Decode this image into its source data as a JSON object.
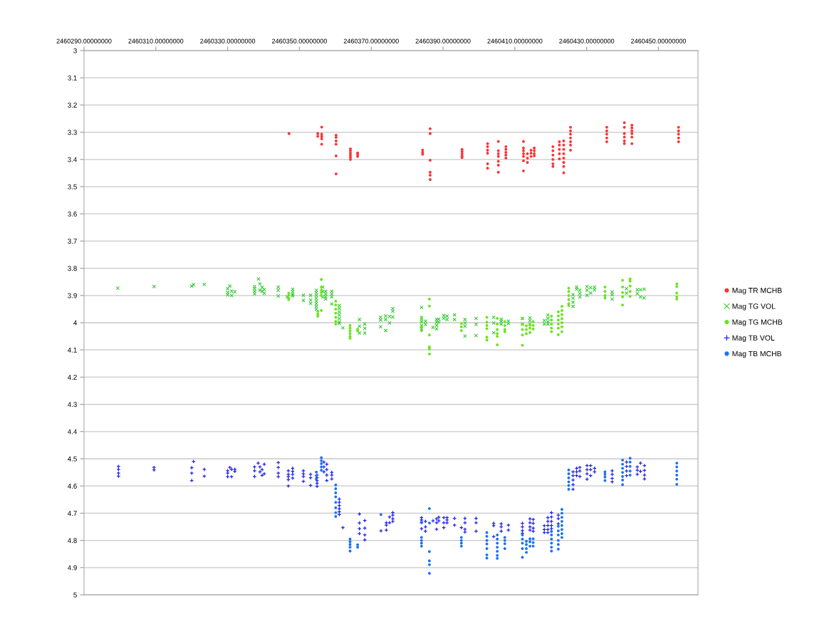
{
  "chart_data": {
    "type": "scatter",
    "xlim": [
      2460290,
      2460461
    ],
    "xticks": [
      {
        "value": 2460290,
        "label": "2460290.00000000"
      },
      {
        "value": 2460310,
        "label": "2460310.00000000"
      },
      {
        "value": 2460330,
        "label": "2460330.00000000"
      },
      {
        "value": 2460350,
        "label": "2460350.00000000"
      },
      {
        "value": 2460370,
        "label": "2460370.00000000"
      },
      {
        "value": 2460390,
        "label": "2460390.00000000"
      },
      {
        "value": 2460410,
        "label": "2460410.00000000"
      },
      {
        "value": 2460430,
        "label": "2460430.00000000"
      },
      {
        "value": 2460450,
        "label": "2460450.00000000"
      }
    ],
    "ylim": [
      5,
      3
    ],
    "yticks": [
      3,
      3.1,
      3.2,
      3.3,
      3.4,
      3.5,
      3.6,
      3.7,
      3.8,
      3.9,
      4,
      4.1,
      4.2,
      4.3,
      4.4,
      4.5,
      4.6,
      4.7,
      4.8,
      4.9,
      5
    ],
    "grid": "y",
    "legend": "right",
    "series": [
      {
        "name": "Mag TR MCHB",
        "color": "#ff3333",
        "marker": "circle",
        "x": [
          2460347.1,
          2460355.1,
          2460355.1,
          2460356.2,
          2460356.2,
          2460356.2,
          2460356.2,
          2460356.2,
          2460360.2,
          2460360.2,
          2460360.2,
          2460360.2,
          2460360.2,
          2460360.2,
          2460364.2,
          2460364.2,
          2460364.2,
          2460364.2,
          2460364.2,
          2460364.2,
          2460366.2,
          2460366.2,
          2460366.2,
          2460384.3,
          2460384.3,
          2460384.3,
          2460386.4,
          2460386.4,
          2460386.4,
          2460386.4,
          2460386.4,
          2460386.4,
          2460395.3,
          2460395.3,
          2460395.3,
          2460395.3,
          2460395.3,
          2460402.4,
          2460402.4,
          2460402.4,
          2460402.4,
          2460402.4,
          2460402.4,
          2460405.4,
          2460405.4,
          2460405.4,
          2460405.4,
          2460405.4,
          2460405.4,
          2460405.4,
          2460407.5,
          2460407.5,
          2460407.5,
          2460407.5,
          2460407.5,
          2460412.4,
          2460412.4,
          2460412.4,
          2460412.4,
          2460412.4,
          2460412.4,
          2460412.4,
          2460413.5,
          2460413.5,
          2460413.5,
          2460414.5,
          2460414.5,
          2460414.5,
          2460415.4,
          2460415.4,
          2460415.4,
          2460415.4,
          2460420.6,
          2460420.6,
          2460420.6,
          2460420.6,
          2460420.6,
          2460420.6,
          2460422.4,
          2460422.4,
          2460422.4,
          2460422.4,
          2460422.4,
          2460423.6,
          2460423.6,
          2460423.6,
          2460423.6,
          2460423.6,
          2460423.6,
          2460423.6,
          2460423.6,
          2460425.5,
          2460425.5,
          2460425.5,
          2460425.5,
          2460425.5,
          2460425.5,
          2460425.5,
          2460435.6,
          2460435.6,
          2460435.6,
          2460435.6,
          2460435.6,
          2460440.5,
          2460440.5,
          2460440.5,
          2460440.5,
          2460440.5,
          2460440.5,
          2460442.6,
          2460442.6,
          2460442.6,
          2460442.6,
          2460442.6,
          2460442.6,
          2460455.6,
          2460455.6,
          2460455.6,
          2460455.6,
          2460455.6
        ],
        "values": [
          3.305,
          3.305,
          3.315,
          3.281,
          3.307,
          3.316,
          3.324,
          3.344,
          3.311,
          3.319,
          3.332,
          3.344,
          3.387,
          3.453,
          3.361,
          3.368,
          3.376,
          3.384,
          3.392,
          3.4,
          3.376,
          3.382,
          3.389,
          3.366,
          3.374,
          3.381,
          3.287,
          3.305,
          3.403,
          3.447,
          3.458,
          3.474,
          3.363,
          3.371,
          3.379,
          3.387,
          3.393,
          3.342,
          3.353,
          3.366,
          3.377,
          3.416,
          3.432,
          3.334,
          3.368,
          3.379,
          3.389,
          3.407,
          3.421,
          3.447,
          3.353,
          3.363,
          3.374,
          3.384,
          3.395,
          3.334,
          3.358,
          3.368,
          3.379,
          3.389,
          3.405,
          3.442,
          3.379,
          3.395,
          3.411,
          3.366,
          3.377,
          3.389,
          3.358,
          3.368,
          3.379,
          3.387,
          3.353,
          3.368,
          3.384,
          3.4,
          3.416,
          3.426,
          3.335,
          3.347,
          3.363,
          3.379,
          3.398,
          3.332,
          3.347,
          3.363,
          3.379,
          3.395,
          3.411,
          3.426,
          3.449,
          3.282,
          3.295,
          3.307,
          3.321,
          3.335,
          3.347,
          3.366,
          3.282,
          3.295,
          3.307,
          3.321,
          3.335,
          3.265,
          3.282,
          3.305,
          3.318,
          3.332,
          3.342,
          3.274,
          3.284,
          3.295,
          3.305,
          3.318,
          3.342,
          3.282,
          3.295,
          3.307,
          3.321,
          3.335
        ]
      },
      {
        "name": "Mag TG VOL",
        "color": "#33cc33",
        "marker": "x",
        "x": [
          2460299.4,
          2460309.5,
          2460320.0,
          2460320.5,
          2460323.5,
          2460330.0,
          2460330.0,
          2460330.0,
          2460330.6,
          2460331.1,
          2460331.1,
          2460332.0,
          2460337.5,
          2460337.5,
          2460337.5,
          2460337.5,
          2460338.6,
          2460339.0,
          2460339.0,
          2460339.6,
          2460339.6,
          2460340.2,
          2460340.2,
          2460344.1,
          2460344.1,
          2460344.1,
          2460346.6,
          2460348.1,
          2460348.1,
          2460348.1,
          2460348.1,
          2460351.1,
          2460351.1,
          2460353.1,
          2460353.1,
          2460353.1,
          2460354.7,
          2460354.7,
          2460354.7,
          2460354.7,
          2460354.7,
          2460354.7,
          2460354.7,
          2460354.7,
          2460356.5,
          2460356.5,
          2460356.5,
          2460357.3,
          2460357.3,
          2460357.3,
          2460357.3,
          2460359.0,
          2460359.0,
          2460359.0,
          2460359.0,
          2460361.1,
          2460361.1,
          2460361.1,
          2460361.1,
          2460361.1,
          2460361.1,
          2460361.1,
          2460362.1,
          2460366.7,
          2460366.7,
          2460366.7,
          2460368.2,
          2460368.2,
          2460368.2,
          2460372.6,
          2460372.6,
          2460372.6,
          2460374.0,
          2460374.0,
          2460374.0,
          2460375.1,
          2460375.1,
          2460376.0,
          2460376.0,
          2460376.0,
          2460384.0,
          2460384.0,
          2460384.0,
          2460384.0,
          2460384.0,
          2460385.1,
          2460385.1,
          2460387.2,
          2460388.2,
          2460388.2,
          2460388.2,
          2460388.2,
          2460388.8,
          2460388.8,
          2460390.2,
          2460390.2,
          2460391.1,
          2460391.1,
          2460393.2,
          2460393.2,
          2460396.1,
          2460396.1,
          2460396.1,
          2460396.1,
          2460399.2,
          2460399.2,
          2460399.2,
          2460404.1,
          2460404.1,
          2460404.1,
          2460406.2,
          2460406.2,
          2460406.2,
          2460408.2,
          2460408.2,
          2460412.1,
          2460412.1,
          2460414.2,
          2460414.2,
          2460414.2,
          2460418.2,
          2460418.2,
          2460419.2,
          2460419.2,
          2460419.2,
          2460419.2,
          2460426.2,
          2460426.2,
          2460426.2,
          2460426.2,
          2460427.2,
          2460427.2,
          2460428.1,
          2460428.1,
          2460428.1,
          2460430.1,
          2460430.1,
          2460430.1,
          2460431.1,
          2460431.1,
          2460432.2,
          2460432.2,
          2460437.1,
          2460437.1,
          2460437.1,
          2460441.1,
          2460441.1,
          2460444.1,
          2460444.1,
          2460445.0,
          2460445.0,
          2460446.0,
          2460446.0
        ],
        "values": [
          3.873,
          3.867,
          3.865,
          3.86,
          3.859,
          3.875,
          3.889,
          3.898,
          3.865,
          3.884,
          3.9,
          3.886,
          3.867,
          3.875,
          3.885,
          3.894,
          3.839,
          3.857,
          3.88,
          3.87,
          3.885,
          3.878,
          3.892,
          3.869,
          3.881,
          3.902,
          3.905,
          3.877,
          3.886,
          3.895,
          3.901,
          3.899,
          3.918,
          3.899,
          3.917,
          3.929,
          3.881,
          3.89,
          3.9,
          3.91,
          3.92,
          3.93,
          3.94,
          3.95,
          3.869,
          3.885,
          3.905,
          3.885,
          3.895,
          3.905,
          3.913,
          3.885,
          3.895,
          3.905,
          3.931,
          3.937,
          3.948,
          3.96,
          3.972,
          3.985,
          3.997,
          4.003,
          4.019,
          3.988,
          4.013,
          4.038,
          4.005,
          4.021,
          4.038,
          3.98,
          3.99,
          4.015,
          3.975,
          3.988,
          4.029,
          3.977,
          4.001,
          3.948,
          3.958,
          3.979,
          3.944,
          3.98,
          3.995,
          4.01,
          4.022,
          3.994,
          4.006,
          4.017,
          3.988,
          3.998,
          4.01,
          4.023,
          3.987,
          3.998,
          3.974,
          3.984,
          3.976,
          3.988,
          3.971,
          3.988,
          3.988,
          4.001,
          4.013,
          4.049,
          3.984,
          4.006,
          4.047,
          3.98,
          4.001,
          4.037,
          3.987,
          3.995,
          4.005,
          3.994,
          4.003,
          3.984,
          4.006,
          3.982,
          3.992,
          4.005,
          3.992,
          4.005,
          3.972,
          3.984,
          3.996,
          4.005,
          3.897,
          3.91,
          3.925,
          3.94,
          3.869,
          3.877,
          3.881,
          3.893,
          3.905,
          3.867,
          3.88,
          3.899,
          3.871,
          3.891,
          3.869,
          3.879,
          3.887,
          3.897,
          3.913,
          3.875,
          3.891,
          3.879,
          3.893,
          3.879,
          3.905,
          3.877,
          3.909
        ]
      },
      {
        "name": "Mag TG MCHB",
        "color": "#66e619",
        "marker": "circle",
        "x": [
          2460347.0,
          2460347.0,
          2460347.0,
          2460347.0,
          2460355.1,
          2460355.1,
          2460355.1,
          2460356.1,
          2460356.1,
          2460356.1,
          2460356.1,
          2460356.1,
          2460356.1,
          2460360.1,
          2460360.1,
          2460360.1,
          2460360.1,
          2460360.1,
          2460360.1,
          2460360.1,
          2460364.1,
          2460364.1,
          2460364.1,
          2460364.1,
          2460364.1,
          2460364.1,
          2460366.2,
          2460366.2,
          2460384.0,
          2460384.0,
          2460384.0,
          2460384.0,
          2460386.2,
          2460386.2,
          2460386.2,
          2460386.2,
          2460386.2,
          2460386.2,
          2460395.1,
          2460395.1,
          2460395.1,
          2460402.2,
          2460402.2,
          2460402.2,
          2460402.2,
          2460402.2,
          2460402.2,
          2460405.1,
          2460405.1,
          2460405.1,
          2460405.1,
          2460405.1,
          2460405.1,
          2460407.2,
          2460407.2,
          2460407.2,
          2460407.2,
          2460412.1,
          2460412.1,
          2460412.1,
          2460412.1,
          2460412.1,
          2460413.2,
          2460413.2,
          2460413.2,
          2460414.2,
          2460414.2,
          2460414.2,
          2460415.1,
          2460415.1,
          2460415.1,
          2460420.2,
          2460420.2,
          2460420.2,
          2460420.2,
          2460420.2,
          2460422.1,
          2460422.1,
          2460422.1,
          2460422.1,
          2460422.1,
          2460422.1,
          2460423.1,
          2460423.1,
          2460423.1,
          2460423.1,
          2460423.1,
          2460423.1,
          2460423.1,
          2460425.0,
          2460425.0,
          2460425.0,
          2460425.0,
          2460425.0,
          2460425.0,
          2460435.1,
          2460435.1,
          2460435.1,
          2460435.1,
          2460440.0,
          2460440.0,
          2460440.0,
          2460440.0,
          2460440.0,
          2460442.1,
          2460442.1,
          2460442.1,
          2460442.1,
          2460442.1,
          2460455.1,
          2460455.1,
          2460455.1,
          2460455.1,
          2460455.1
        ],
        "values": [
          3.891,
          3.9,
          3.91,
          3.915,
          3.958,
          3.968,
          3.976,
          3.841,
          3.869,
          3.88,
          3.89,
          3.9,
          3.955,
          3.921,
          3.935,
          3.95,
          3.965,
          3.98,
          3.995,
          4.005,
          4.01,
          4.02,
          4.03,
          4.04,
          4.05,
          4.057,
          4.024,
          4.03,
          3.985,
          3.998,
          4.015,
          4.029,
          3.913,
          3.939,
          4.045,
          4.089,
          4.097,
          4.115,
          4.003,
          4.015,
          4.029,
          3.98,
          3.998,
          4.01,
          4.022,
          4.053,
          4.064,
          3.984,
          4.005,
          4.025,
          4.04,
          4.05,
          4.081,
          3.996,
          4.01,
          4.025,
          4.033,
          3.985,
          4.005,
          4.025,
          4.045,
          4.083,
          4.011,
          4.025,
          4.04,
          4.009,
          4.02,
          4.036,
          3.996,
          4.01,
          4.023,
          3.976,
          3.99,
          4.005,
          4.02,
          4.033,
          3.96,
          3.975,
          3.99,
          4.005,
          4.02,
          4.044,
          3.94,
          3.955,
          3.97,
          3.985,
          4.0,
          4.015,
          4.033,
          3.873,
          3.885,
          3.9,
          3.915,
          3.93,
          3.937,
          3.869,
          3.885,
          3.9,
          3.909,
          3.844,
          3.869,
          3.889,
          3.905,
          3.935,
          3.839,
          3.847,
          3.865,
          3.885,
          3.903,
          3.857,
          3.867,
          3.891,
          3.905,
          3.913
        ]
      },
      {
        "name": "Mag TB VOL",
        "color": "#2222ee",
        "marker": "cross",
        "x": [
          2460299.6,
          2460299.6,
          2460299.6,
          2460299.6,
          2460309.5,
          2460309.5,
          2460320.0,
          2460320.0,
          2460320.0,
          2460320.5,
          2460323.5,
          2460323.5,
          2460330.0,
          2460330.0,
          2460330.0,
          2460330.6,
          2460331.1,
          2460331.1,
          2460332.0,
          2460332.0,
          2460337.5,
          2460337.5,
          2460337.5,
          2460338.5,
          2460339.0,
          2460339.0,
          2460339.6,
          2460339.6,
          2460340.2,
          2460340.2,
          2460344.1,
          2460344.1,
          2460344.1,
          2460344.1,
          2460346.9,
          2460346.9,
          2460346.9,
          2460346.9,
          2460346.9,
          2460348.1,
          2460348.1,
          2460348.1,
          2460348.1,
          2460351.1,
          2460351.1,
          2460351.1,
          2460351.1,
          2460353.1,
          2460353.1,
          2460353.1,
          2460354.9,
          2460354.9,
          2460354.9,
          2460354.9,
          2460354.9,
          2460356.8,
          2460356.8,
          2460356.8,
          2460357.6,
          2460357.6,
          2460357.6,
          2460357.6,
          2460359.0,
          2460359.0,
          2460359.0,
          2460361.1,
          2460361.1,
          2460361.1,
          2460361.1,
          2460361.1,
          2460361.1,
          2460362.1,
          2460366.7,
          2460366.7,
          2460366.7,
          2460366.7,
          2460368.2,
          2460368.2,
          2460368.2,
          2460368.2,
          2460372.7,
          2460374.2,
          2460374.2,
          2460374.2,
          2460375.1,
          2460375.1,
          2460376.0,
          2460376.0,
          2460376.0,
          2460376.0,
          2460384.0,
          2460384.0,
          2460384.0,
          2460384.0,
          2460385.1,
          2460385.1,
          2460385.1,
          2460387.2,
          2460388.2,
          2460388.2,
          2460388.2,
          2460388.8,
          2460388.8,
          2460390.2,
          2460390.2,
          2460390.2,
          2460391.1,
          2460391.1,
          2460391.1,
          2460393.2,
          2460393.2,
          2460395.1,
          2460396.1,
          2460396.1,
          2460396.1,
          2460396.1,
          2460399.2,
          2460399.2,
          2460399.2,
          2460404.1,
          2460404.1,
          2460404.1,
          2460406.2,
          2460406.2,
          2460406.2,
          2460408.2,
          2460408.2,
          2460412.1,
          2460412.1,
          2460412.1,
          2460412.1,
          2460414.2,
          2460414.2,
          2460414.2,
          2460414.2,
          2460415.1,
          2460415.1,
          2460415.1,
          2460415.1,
          2460418.2,
          2460418.2,
          2460418.2,
          2460419.2,
          2460419.2,
          2460419.2,
          2460419.2,
          2460419.2,
          2460420.2,
          2460420.2,
          2460420.2,
          2460420.2,
          2460420.2,
          2460422.1,
          2460422.1,
          2460422.1,
          2460426.2,
          2460426.2,
          2460426.2,
          2460426.2,
          2460426.2,
          2460427.2,
          2460427.2,
          2460427.2,
          2460428.1,
          2460428.1,
          2460428.1,
          2460430.1,
          2460430.1,
          2460430.1,
          2460430.1,
          2460431.1,
          2460431.1,
          2460431.1,
          2460432.2,
          2460432.2,
          2460437.1,
          2460437.1,
          2460437.1,
          2460437.1,
          2460441.1,
          2460441.1,
          2460441.1,
          2460441.1,
          2460444.1,
          2460444.1,
          2460444.1,
          2460445.0,
          2460445.0,
          2460446.1,
          2460446.1,
          2460446.1,
          2460446.1
        ],
        "values": [
          4.528,
          4.539,
          4.553,
          4.564,
          4.532,
          4.541,
          4.533,
          4.553,
          4.58,
          4.51,
          4.539,
          4.564,
          4.544,
          4.553,
          4.566,
          4.532,
          4.539,
          4.566,
          4.539,
          4.546,
          4.53,
          4.544,
          4.565,
          4.516,
          4.53,
          4.548,
          4.54,
          4.561,
          4.52,
          4.555,
          4.514,
          4.532,
          4.553,
          4.566,
          4.544,
          4.557,
          4.566,
          4.577,
          4.6,
          4.535,
          4.546,
          4.557,
          4.571,
          4.544,
          4.555,
          4.565,
          4.583,
          4.557,
          4.57,
          4.598,
          4.56,
          4.57,
          4.58,
          4.59,
          4.601,
          4.512,
          4.53,
          4.548,
          4.52,
          4.54,
          4.56,
          4.58,
          4.55,
          4.56,
          4.574,
          4.648,
          4.66,
          4.672,
          4.684,
          4.695,
          4.705,
          4.753,
          4.703,
          4.736,
          4.757,
          4.775,
          4.727,
          4.755,
          4.78,
          4.798,
          4.765,
          4.735,
          4.744,
          4.762,
          4.714,
          4.735,
          4.698,
          4.707,
          4.721,
          4.73,
          4.716,
          4.725,
          4.735,
          4.757,
          4.73,
          4.75,
          4.766,
          4.728,
          4.721,
          4.735,
          4.759,
          4.715,
          4.728,
          4.716,
          4.735,
          4.753,
          4.716,
          4.725,
          4.735,
          4.719,
          4.744,
          4.753,
          4.719,
          4.735,
          4.759,
          4.769,
          4.719,
          4.735,
          4.766,
          4.737,
          4.746,
          4.786,
          4.739,
          4.75,
          4.766,
          4.744,
          4.762,
          4.737,
          4.75,
          4.764,
          4.774,
          4.721,
          4.735,
          4.75,
          4.762,
          4.723,
          4.737,
          4.755,
          4.766,
          4.746,
          4.76,
          4.771,
          4.716,
          4.73,
          4.745,
          4.76,
          4.771,
          4.698,
          4.714,
          4.73,
          4.745,
          4.757,
          4.707,
          4.72,
          4.739,
          4.548,
          4.562,
          4.578,
          4.595,
          4.612,
          4.535,
          4.548,
          4.562,
          4.532,
          4.545,
          4.565,
          4.525,
          4.54,
          4.555,
          4.575,
          4.525,
          4.54,
          4.562,
          4.535,
          4.548,
          4.544,
          4.557,
          4.572,
          4.585,
          4.512,
          4.528,
          4.545,
          4.562,
          4.53,
          4.542,
          4.557,
          4.516,
          4.546,
          4.525,
          4.543,
          4.56,
          4.574
        ]
      },
      {
        "name": "Mag TB MCHB",
        "color": "#1c72f2",
        "marker": "circle",
        "x": [
          2460354.7,
          2460354.7,
          2460354.7,
          2460356.1,
          2460356.1,
          2460356.1,
          2460356.1,
          2460356.1,
          2460360.1,
          2460360.1,
          2460360.1,
          2460360.1,
          2460360.1,
          2460360.1,
          2460360.1,
          2460360.1,
          2460364.1,
          2460364.1,
          2460364.1,
          2460364.1,
          2460364.1,
          2460366.2,
          2460366.2,
          2460372.7,
          2460384.0,
          2460384.0,
          2460384.0,
          2460384.0,
          2460384.0,
          2460386.2,
          2460386.2,
          2460386.2,
          2460386.2,
          2460386.2,
          2460386.2,
          2460395.1,
          2460395.1,
          2460395.1,
          2460395.1,
          2460402.2,
          2460402.2,
          2460402.2,
          2460402.2,
          2460402.2,
          2460402.2,
          2460402.2,
          2460405.1,
          2460405.1,
          2460405.1,
          2460405.1,
          2460405.1,
          2460405.1,
          2460405.1,
          2460407.2,
          2460407.2,
          2460407.2,
          2460407.2,
          2460412.1,
          2460412.1,
          2460412.1,
          2460412.1,
          2460412.1,
          2460413.2,
          2460413.2,
          2460413.2,
          2460413.2,
          2460414.2,
          2460414.2,
          2460414.2,
          2460415.1,
          2460415.1,
          2460415.1,
          2460420.2,
          2460420.2,
          2460420.2,
          2460420.2,
          2460420.2,
          2460420.2,
          2460422.1,
          2460422.1,
          2460422.1,
          2460422.1,
          2460422.1,
          2460422.1,
          2460423.1,
          2460423.1,
          2460423.1,
          2460423.1,
          2460423.1,
          2460423.1,
          2460423.1,
          2460423.1,
          2460425.0,
          2460425.0,
          2460425.0,
          2460425.0,
          2460425.0,
          2460425.0,
          2460435.1,
          2460435.1,
          2460435.1,
          2460435.1,
          2460440.0,
          2460440.0,
          2460440.0,
          2460440.0,
          2460440.0,
          2460440.0,
          2460440.0,
          2460442.1,
          2460442.1,
          2460442.1,
          2460442.1,
          2460442.1,
          2460455.1,
          2460455.1,
          2460455.1,
          2460455.1,
          2460455.1,
          2460455.1
        ],
        "values": [
          4.549,
          4.562,
          4.575,
          4.496,
          4.507,
          4.518,
          4.53,
          4.542,
          4.596,
          4.61,
          4.625,
          4.64,
          4.66,
          4.68,
          4.698,
          4.712,
          4.795,
          4.805,
          4.815,
          4.825,
          4.839,
          4.816,
          4.825,
          4.705,
          4.732,
          4.789,
          4.8,
          4.81,
          4.821,
          4.683,
          4.736,
          4.841,
          4.875,
          4.889,
          4.921,
          4.789,
          4.8,
          4.81,
          4.821,
          4.771,
          4.785,
          4.8,
          4.813,
          4.83,
          4.853,
          4.865,
          4.78,
          4.795,
          4.81,
          4.825,
          4.84,
          4.855,
          4.866,
          4.789,
          4.8,
          4.812,
          4.83,
          4.78,
          4.795,
          4.81,
          4.83,
          4.862,
          4.803,
          4.815,
          4.83,
          4.844,
          4.794,
          4.805,
          4.821,
          4.794,
          4.808,
          4.821,
          4.767,
          4.78,
          4.795,
          4.81,
          4.825,
          4.839,
          4.748,
          4.765,
          4.78,
          4.8,
          4.815,
          4.832,
          4.686,
          4.7,
          4.715,
          4.73,
          4.745,
          4.76,
          4.775,
          4.789,
          4.541,
          4.555,
          4.57,
          4.585,
          4.598,
          4.612,
          4.548,
          4.557,
          4.567,
          4.58,
          4.505,
          4.52,
          4.535,
          4.55,
          4.565,
          4.578,
          4.595,
          4.498,
          4.512,
          4.528,
          4.545,
          4.56,
          4.516,
          4.53,
          4.545,
          4.56,
          4.575,
          4.594
        ]
      }
    ]
  }
}
